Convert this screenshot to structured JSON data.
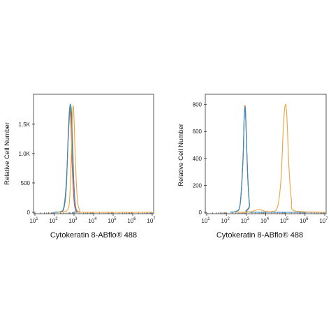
{
  "chart_data": [
    {
      "type": "line",
      "panel": "left",
      "title": "",
      "xlabel": "Cytokeratin 8-ABflo® 488",
      "ylabel": "Relative Cell Number",
      "x_scale": "log",
      "xlim": [
        10,
        10000000
      ],
      "ylim": [
        0,
        1950
      ],
      "x_ticks": [
        {
          "base": "10",
          "exp": "1",
          "value": 10
        },
        {
          "base": "10",
          "exp": "2",
          "value": 100
        },
        {
          "base": "10",
          "exp": "3",
          "value": 1000
        },
        {
          "base": "10",
          "exp": "4",
          "value": 10000
        },
        {
          "base": "10",
          "exp": "5",
          "value": 100000
        },
        {
          "base": "10",
          "exp": "6",
          "value": 1000000
        },
        {
          "base": "10",
          "exp": "7",
          "value": 10000000
        }
      ],
      "y_ticks": [
        {
          "label": "0",
          "value": 0
        },
        {
          "label": "500",
          "value": 500
        },
        {
          "label": "1.0K",
          "value": 1000
        },
        {
          "label": "1.5K",
          "value": 1500
        }
      ],
      "grid": false,
      "series": [
        {
          "color": "#e8503a",
          "x": [
            100,
            200,
            300,
            400,
            500,
            600,
            700,
            800,
            1000,
            1200,
            1500,
            2000,
            10000000
          ],
          "values": [
            0,
            5,
            60,
            400,
            1300,
            1770,
            1500,
            800,
            200,
            40,
            8,
            0,
            0
          ]
        },
        {
          "color": "#4aa35a",
          "x": [
            100,
            200,
            300,
            400,
            500,
            600,
            700,
            800,
            1000,
            1200,
            1500,
            2000,
            10000000
          ],
          "values": [
            0,
            10,
            90,
            500,
            1200,
            1690,
            1760,
            1200,
            400,
            90,
            15,
            0,
            0
          ]
        },
        {
          "color": "#3a86c8",
          "x": [
            100,
            200,
            300,
            400,
            500,
            600,
            700,
            800,
            900,
            1000,
            1200,
            1500,
            2000,
            10000000
          ],
          "values": [
            0,
            8,
            70,
            420,
            1250,
            1780,
            1800,
            1500,
            900,
            450,
            100,
            15,
            0,
            0
          ]
        },
        {
          "color": "#f0a23a",
          "x": [
            150,
            300,
            500,
            600,
            700,
            800,
            900,
            1000,
            1200,
            1500,
            2000,
            3000,
            10000000
          ],
          "values": [
            0,
            5,
            60,
            250,
            800,
            1500,
            1810,
            1600,
            800,
            200,
            30,
            0,
            0
          ]
        }
      ]
    },
    {
      "type": "line",
      "panel": "right",
      "title": "",
      "xlabel": "Cytokeratin 8-ABflo® 488",
      "ylabel": "Relative Cell Number",
      "x_scale": "log",
      "xlim": [
        10,
        10000000
      ],
      "ylim": [
        0,
        850
      ],
      "x_ticks": [
        {
          "base": "10",
          "exp": "1",
          "value": 10
        },
        {
          "base": "10",
          "exp": "2",
          "value": 100
        },
        {
          "base": "10",
          "exp": "3",
          "value": 1000
        },
        {
          "base": "10",
          "exp": "4",
          "value": 10000
        },
        {
          "base": "10",
          "exp": "5",
          "value": 100000
        },
        {
          "base": "10",
          "exp": "6",
          "value": 1000000
        },
        {
          "base": "10",
          "exp": "7",
          "value": 10000000
        }
      ],
      "y_ticks": [
        {
          "label": "0",
          "value": 0
        },
        {
          "label": "200",
          "value": 200
        },
        {
          "label": "400",
          "value": 400
        },
        {
          "label": "600",
          "value": 600
        },
        {
          "label": "800",
          "value": 800
        }
      ],
      "grid": false,
      "series": [
        {
          "color": "#e8503a",
          "x": [
            150,
            300,
            500,
            700,
            800,
            900,
            1000,
            1200,
            1500,
            2000,
            10000000
          ],
          "values": [
            0,
            5,
            60,
            400,
            700,
            790,
            650,
            300,
            60,
            0,
            0
          ]
        },
        {
          "color": "#4aa35a",
          "x": [
            150,
            300,
            500,
            700,
            800,
            900,
            1000,
            1200,
            1500,
            2000,
            10000000
          ],
          "values": [
            0,
            5,
            55,
            380,
            690,
            780,
            640,
            290,
            55,
            0,
            0
          ]
        },
        {
          "color": "#3a86c8",
          "x": [
            150,
            300,
            500,
            700,
            800,
            900,
            1000,
            1200,
            1500,
            2000,
            10000000
          ],
          "values": [
            0,
            6,
            58,
            390,
            690,
            770,
            620,
            280,
            50,
            0,
            0
          ]
        },
        {
          "color": "#f0a23a",
          "x": [
            300,
            1500,
            3000,
            5000,
            8000,
            20000,
            40000,
            60000,
            80000,
            100000,
            120000,
            150000,
            200000,
            300000,
            10000000
          ],
          "values": [
            0,
            2,
            15,
            20,
            10,
            5,
            40,
            250,
            650,
            800,
            700,
            350,
            100,
            10,
            0
          ]
        }
      ]
    }
  ]
}
